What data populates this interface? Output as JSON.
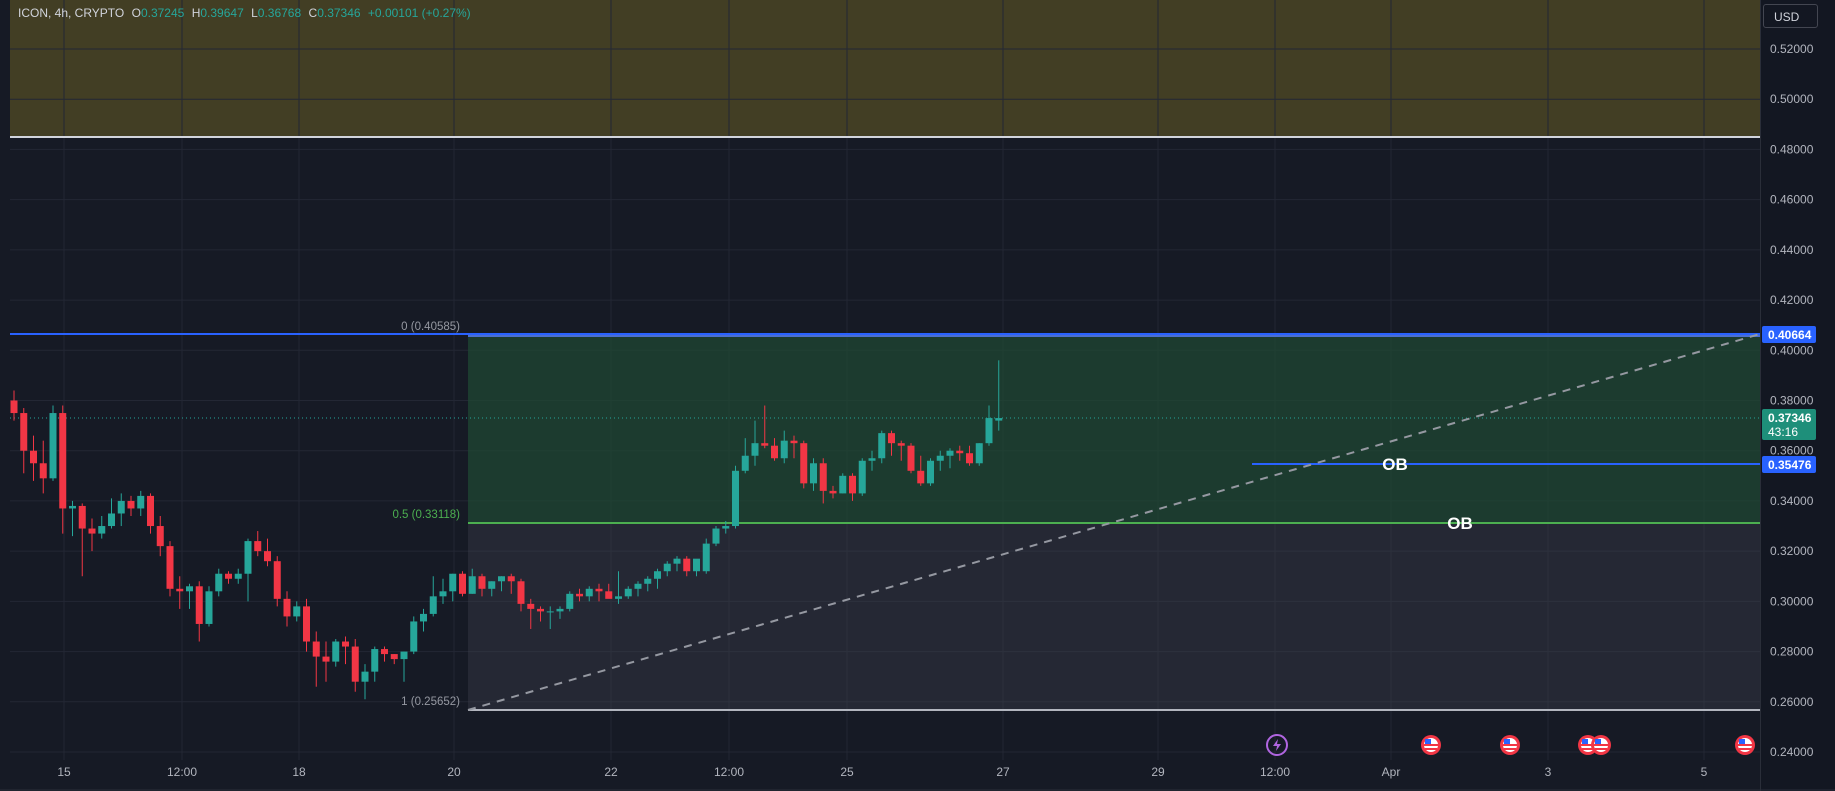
{
  "legend": {
    "symbol": "ICON, 4h, CRYPTO",
    "o_label": "O",
    "o_value": "0.37245",
    "h_label": "H",
    "h_value": "0.39647",
    "l_label": "L",
    "l_value": "0.36768",
    "c_label": "C",
    "c_value": "0.37346",
    "change": "+0.00101 (+0.27%)"
  },
  "currency": "USD",
  "price_axis": {
    "ticks": [
      "0.52000",
      "0.50000",
      "0.48000",
      "0.46000",
      "0.44000",
      "0.42000",
      "0.40000",
      "0.38000",
      "0.36000",
      "0.34000",
      "0.32000",
      "0.30000",
      "0.28000",
      "0.26000",
      "0.24000"
    ]
  },
  "price_tags": {
    "level_top": "0.40664",
    "current_price": "0.37346",
    "countdown": "43:16",
    "level_mid": "0.35476"
  },
  "time_axis": {
    "labels": [
      "15",
      "12:00",
      "18",
      "20",
      "22",
      "12:00",
      "25",
      "27",
      "29",
      "12:00",
      "Apr",
      "3",
      "5"
    ]
  },
  "fib": {
    "label_0": "0 (0.40585)",
    "label_05": "0.5 (0.33118)",
    "label_1": "1 (0.25652)"
  },
  "ob_labels": [
    "OB",
    "OB"
  ],
  "colors": {
    "bg": "#161a25",
    "up": "#26a69a",
    "down": "#f23645",
    "blue": "#2962ff",
    "green_line": "#4caf50",
    "olive_zone": "#4a4525"
  },
  "chart_data": {
    "type": "candlestick",
    "symbol": "ICON",
    "interval": "4h",
    "ylim": [
      0.235,
      0.535
    ],
    "candles": [
      [
        0.38,
        0.384,
        0.372,
        0.375
      ],
      [
        0.375,
        0.377,
        0.351,
        0.36
      ],
      [
        0.36,
        0.366,
        0.348,
        0.355
      ],
      [
        0.355,
        0.364,
        0.343,
        0.349
      ],
      [
        0.349,
        0.378,
        0.348,
        0.375
      ],
      [
        0.375,
        0.378,
        0.327,
        0.337
      ],
      [
        0.337,
        0.34,
        0.326,
        0.338
      ],
      [
        0.338,
        0.339,
        0.31,
        0.329
      ],
      [
        0.329,
        0.333,
        0.32,
        0.327
      ],
      [
        0.327,
        0.334,
        0.325,
        0.33
      ],
      [
        0.33,
        0.341,
        0.329,
        0.335
      ],
      [
        0.335,
        0.343,
        0.33,
        0.34
      ],
      [
        0.34,
        0.342,
        0.334,
        0.337
      ],
      [
        0.337,
        0.344,
        0.334,
        0.342
      ],
      [
        0.342,
        0.343,
        0.327,
        0.33
      ],
      [
        0.33,
        0.334,
        0.318,
        0.322
      ],
      [
        0.322,
        0.324,
        0.302,
        0.305
      ],
      [
        0.305,
        0.31,
        0.297,
        0.304
      ],
      [
        0.304,
        0.307,
        0.297,
        0.306
      ],
      [
        0.306,
        0.308,
        0.284,
        0.291
      ],
      [
        0.291,
        0.306,
        0.29,
        0.304
      ],
      [
        0.304,
        0.313,
        0.302,
        0.311
      ],
      [
        0.311,
        0.312,
        0.307,
        0.309
      ],
      [
        0.309,
        0.313,
        0.307,
        0.311
      ],
      [
        0.311,
        0.325,
        0.3,
        0.324
      ],
      [
        0.324,
        0.328,
        0.318,
        0.32
      ],
      [
        0.32,
        0.325,
        0.314,
        0.316
      ],
      [
        0.316,
        0.318,
        0.298,
        0.301
      ],
      [
        0.301,
        0.304,
        0.29,
        0.294
      ],
      [
        0.294,
        0.3,
        0.292,
        0.298
      ],
      [
        0.298,
        0.301,
        0.28,
        0.284
      ],
      [
        0.284,
        0.288,
        0.266,
        0.278
      ],
      [
        0.278,
        0.284,
        0.268,
        0.276
      ],
      [
        0.276,
        0.285,
        0.274,
        0.284
      ],
      [
        0.284,
        0.286,
        0.275,
        0.282
      ],
      [
        0.282,
        0.285,
        0.264,
        0.268
      ],
      [
        0.268,
        0.275,
        0.261,
        0.272
      ],
      [
        0.272,
        0.282,
        0.268,
        0.281
      ],
      [
        0.281,
        0.282,
        0.276,
        0.279
      ],
      [
        0.279,
        0.279,
        0.275,
        0.277
      ],
      [
        0.277,
        0.28,
        0.268,
        0.28
      ],
      [
        0.28,
        0.294,
        0.279,
        0.292
      ],
      [
        0.292,
        0.297,
        0.288,
        0.295
      ],
      [
        0.295,
        0.31,
        0.294,
        0.302
      ],
      [
        0.302,
        0.309,
        0.299,
        0.304
      ],
      [
        0.304,
        0.311,
        0.3,
        0.311
      ],
      [
        0.311,
        0.312,
        0.302,
        0.303
      ],
      [
        0.303,
        0.313,
        0.303,
        0.31
      ],
      [
        0.31,
        0.311,
        0.302,
        0.305
      ],
      [
        0.305,
        0.308,
        0.302,
        0.308
      ],
      [
        0.308,
        0.31,
        0.304,
        0.31
      ],
      [
        0.31,
        0.311,
        0.303,
        0.308
      ],
      [
        0.308,
        0.309,
        0.296,
        0.299
      ],
      [
        0.299,
        0.301,
        0.289,
        0.297
      ],
      [
        0.297,
        0.298,
        0.292,
        0.296
      ],
      [
        0.296,
        0.298,
        0.289,
        0.296
      ],
      [
        0.296,
        0.298,
        0.293,
        0.297
      ],
      [
        0.297,
        0.304,
        0.296,
        0.303
      ],
      [
        0.303,
        0.305,
        0.3,
        0.302
      ],
      [
        0.302,
        0.306,
        0.3,
        0.305
      ],
      [
        0.305,
        0.307,
        0.3,
        0.304
      ],
      [
        0.304,
        0.307,
        0.302,
        0.301
      ],
      [
        0.301,
        0.312,
        0.299,
        0.302
      ],
      [
        0.302,
        0.306,
        0.301,
        0.305
      ],
      [
        0.305,
        0.308,
        0.302,
        0.307
      ],
      [
        0.307,
        0.31,
        0.304,
        0.309
      ],
      [
        0.309,
        0.313,
        0.305,
        0.312
      ],
      [
        0.312,
        0.316,
        0.31,
        0.315
      ],
      [
        0.315,
        0.318,
        0.312,
        0.317
      ],
      [
        0.317,
        0.318,
        0.31,
        0.312
      ],
      [
        0.312,
        0.316,
        0.31,
        0.317
      ],
      [
        0.312,
        0.325,
        0.311,
        0.323
      ],
      [
        0.323,
        0.33,
        0.322,
        0.329
      ],
      [
        0.329,
        0.332,
        0.327,
        0.33
      ],
      [
        0.33,
        0.354,
        0.329,
        0.352
      ],
      [
        0.352,
        0.365,
        0.351,
        0.358
      ],
      [
        0.358,
        0.372,
        0.354,
        0.363
      ],
      [
        0.363,
        0.378,
        0.361,
        0.362
      ],
      [
        0.362,
        0.365,
        0.356,
        0.357
      ],
      [
        0.357,
        0.368,
        0.355,
        0.364
      ],
      [
        0.364,
        0.366,
        0.357,
        0.363
      ],
      [
        0.363,
        0.364,
        0.345,
        0.347
      ],
      [
        0.347,
        0.357,
        0.344,
        0.355
      ],
      [
        0.355,
        0.357,
        0.339,
        0.344
      ],
      [
        0.344,
        0.346,
        0.341,
        0.343
      ],
      [
        0.343,
        0.351,
        0.343,
        0.35
      ],
      [
        0.35,
        0.351,
        0.34,
        0.343
      ],
      [
        0.343,
        0.357,
        0.342,
        0.356
      ],
      [
        0.356,
        0.36,
        0.352,
        0.357
      ],
      [
        0.357,
        0.368,
        0.355,
        0.367
      ],
      [
        0.367,
        0.368,
        0.358,
        0.363
      ],
      [
        0.363,
        0.364,
        0.356,
        0.362
      ],
      [
        0.362,
        0.363,
        0.351,
        0.352
      ],
      [
        0.352,
        0.358,
        0.346,
        0.347
      ],
      [
        0.347,
        0.357,
        0.346,
        0.356
      ],
      [
        0.356,
        0.36,
        0.352,
        0.358
      ],
      [
        0.358,
        0.361,
        0.353,
        0.36
      ],
      [
        0.36,
        0.362,
        0.356,
        0.359
      ],
      [
        0.359,
        0.362,
        0.354,
        0.355
      ],
      [
        0.355,
        0.363,
        0.354,
        0.363
      ],
      [
        0.363,
        0.378,
        0.362,
        0.373
      ],
      [
        0.372,
        0.396,
        0.368,
        0.373
      ]
    ],
    "horizontal_levels": [
      0.48463,
      0.40664,
      0.35476,
      0.33118,
      0.25652
    ],
    "fib_levels": [
      {
        "level": "0",
        "price": 0.40585
      },
      {
        "level": "0.5",
        "price": 0.33118
      },
      {
        "level": "1",
        "price": 0.25652
      }
    ],
    "trendline": {
      "from_price": 0.25652,
      "to_price": 0.40664
    }
  }
}
